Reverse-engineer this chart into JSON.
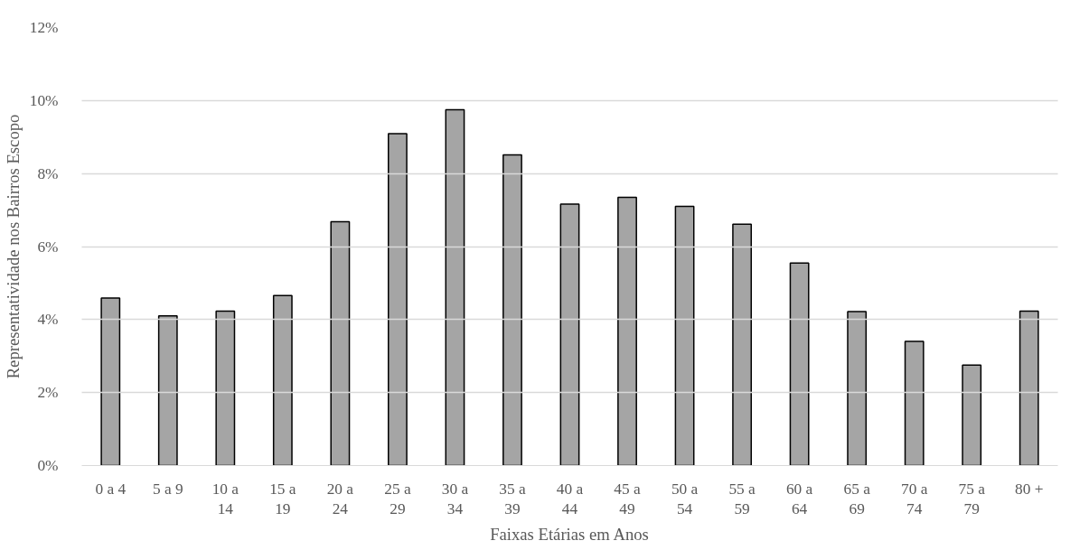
{
  "chart_data": {
    "type": "bar",
    "xlabel": "Faixas Etárias em Anos",
    "ylabel": "Representatividade nos Bairros Escopo",
    "categories": [
      "0 a 4",
      "5 a 9",
      "10 a 14",
      "15 a 19",
      "20 a 24",
      "25 a 29",
      "30 a 34",
      "35 a 39",
      "40 a 44",
      "45 a 49",
      "50 a 54",
      "55 a 59",
      "60 a 64",
      "65 a 69",
      "70 a 74",
      "75 a 79",
      "80 +"
    ],
    "values": [
      4.59,
      4.1,
      4.23,
      4.66,
      6.68,
      9.09,
      9.75,
      8.51,
      7.16,
      7.35,
      7.1,
      6.61,
      5.55,
      4.22,
      3.4,
      2.75,
      4.23
    ],
    "color": "#a5a5a5",
    "ylim": [
      0,
      12
    ],
    "yticks": [
      {
        "value": 0,
        "label": "0%"
      },
      {
        "value": 2,
        "label": "2%"
      },
      {
        "value": 4,
        "label": "4%"
      },
      {
        "value": 6,
        "label": "6%"
      },
      {
        "value": 8,
        "label": "8%"
      },
      {
        "value": 10,
        "label": "10%"
      },
      {
        "value": 12,
        "label": "12%"
      }
    ],
    "grid": "y"
  }
}
